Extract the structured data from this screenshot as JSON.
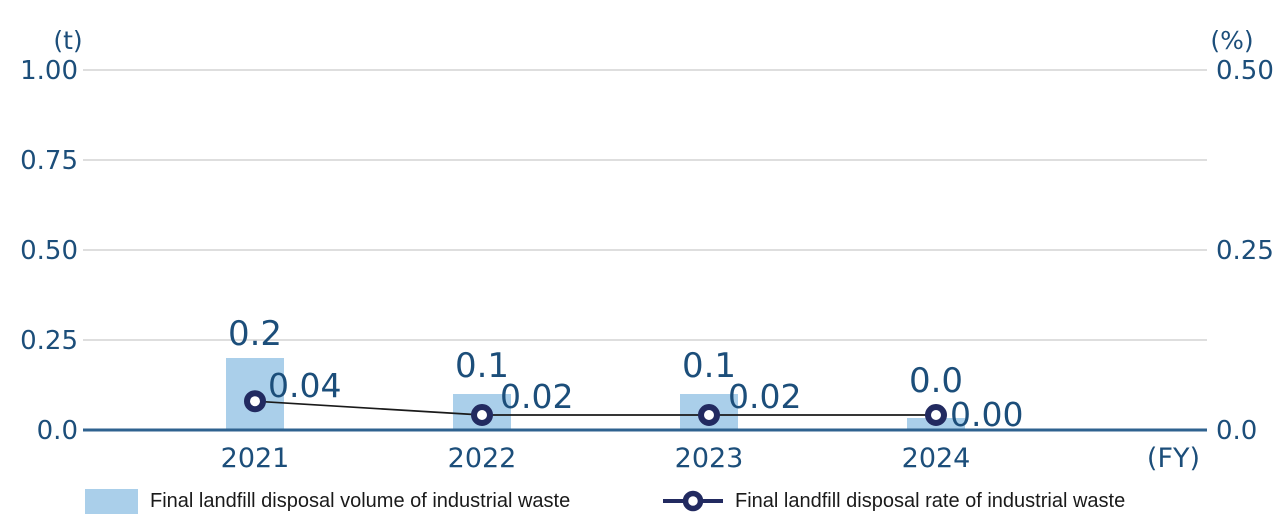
{
  "chart_data": {
    "type": "bar+line",
    "categories": [
      "2021",
      "2022",
      "2023",
      "2024"
    ],
    "series": [
      {
        "name": "Final landfill disposal volume of industrial waste",
        "type": "bar",
        "axis": "left",
        "values": [
          0.2,
          0.1,
          0.1,
          0.0
        ],
        "data_labels": [
          "0.2",
          "0.1",
          "0.1",
          "0.0"
        ],
        "color": "#aacfea"
      },
      {
        "name": "Final landfill disposal rate of industrial waste",
        "type": "line",
        "axis": "right",
        "values": [
          0.04,
          0.02,
          0.02,
          0.0
        ],
        "data_labels": [
          "0.04",
          "0.02",
          "0.02",
          "0.00"
        ],
        "line_color": "#1a1a1a",
        "marker_color": "#222a60"
      }
    ],
    "left_axis": {
      "unit_label": "(t)",
      "ticks": [
        "1.00",
        "0.75",
        "0.50",
        "0.25",
        "0.0"
      ],
      "range": [
        0,
        1.0
      ]
    },
    "right_axis": {
      "unit_label": "(%)",
      "ticks": [
        "0.50",
        "0.25",
        "0.0"
      ],
      "range": [
        0,
        0.5
      ]
    },
    "x_axis": {
      "unit_label": "(FY)"
    },
    "grid": true,
    "legend_position": "bottom",
    "colors": {
      "bar_fill": "#aacfea",
      "line": "#1a1a1a",
      "marker_ring": "#222a60",
      "axis_text": "#1c4e7a",
      "baseline": "#2f628f",
      "gridline": "#c9c9c9",
      "legend_text": "#1a1a1a"
    }
  }
}
